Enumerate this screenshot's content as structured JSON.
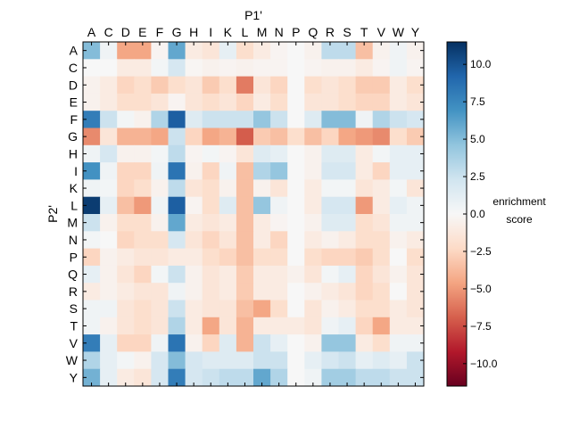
{
  "chart_data": {
    "type": "heatmap",
    "title": "",
    "xlabel": "P1'",
    "ylabel": "P2'",
    "colorbar_label_line1": "enrichment",
    "colorbar_label_line2": "score",
    "x_categories": [
      "A",
      "C",
      "D",
      "E",
      "F",
      "G",
      "H",
      "I",
      "K",
      "L",
      "M",
      "N",
      "P",
      "Q",
      "R",
      "S",
      "T",
      "V",
      "W",
      "Y"
    ],
    "y_categories": [
      "A",
      "C",
      "D",
      "E",
      "F",
      "G",
      "H",
      "I",
      "K",
      "L",
      "M",
      "N",
      "P",
      "Q",
      "R",
      "S",
      "T",
      "V",
      "W",
      "Y"
    ],
    "x_axis_position": "top",
    "colorbar_range": [
      -11.5,
      11.5
    ],
    "colorbar_ticks": [
      -10.0,
      -7.5,
      -5.0,
      -2.5,
      0.0,
      2.5,
      5.0,
      7.5,
      10.0
    ],
    "colorbar_tick_labels": [
      "−10.0",
      "−7.5",
      "−5.0",
      "−2.5",
      "0.0",
      "2.5",
      "5.0",
      "7.5",
      "10.0"
    ],
    "colormap": "RdBu",
    "grid": false,
    "values": [
      [
        5.0,
        0.5,
        -4.5,
        -4.5,
        -0.3,
        6.0,
        -1.0,
        -1.5,
        1.0,
        -2.0,
        -1.0,
        -0.3,
        0.0,
        -0.5,
        3.0,
        3.0,
        -3.5,
        -0.5,
        0.5,
        -0.5
      ],
      [
        0.0,
        0.0,
        -1.0,
        -1.0,
        0.3,
        2.0,
        -0.2,
        -0.5,
        -0.3,
        -0.5,
        -0.3,
        -0.3,
        0.0,
        -0.3,
        -0.5,
        -0.5,
        -1.0,
        -0.3,
        0.5,
        -0.3
      ],
      [
        -0.5,
        -1.0,
        -2.5,
        -2.0,
        -3.0,
        -2.0,
        -1.5,
        -3.0,
        -2.0,
        -6.0,
        -1.5,
        -2.5,
        0.0,
        -2.0,
        -1.5,
        -2.0,
        -3.0,
        -3.0,
        -1.0,
        -2.0
      ],
      [
        -0.5,
        -1.0,
        -2.0,
        -2.0,
        -1.5,
        -0.3,
        -1.5,
        -2.0,
        -1.5,
        -2.5,
        -1.0,
        -2.0,
        0.0,
        -1.5,
        -1.5,
        -2.0,
        -2.5,
        -2.5,
        -1.0,
        -1.5
      ],
      [
        8.0,
        2.5,
        0.3,
        -0.5,
        3.5,
        9.5,
        1.5,
        2.5,
        2.5,
        2.5,
        4.5,
        2.5,
        0.0,
        1.5,
        5.0,
        5.0,
        0.5,
        3.5,
        2.5,
        2.0
      ],
      [
        -5.5,
        -1.5,
        -4.0,
        -4.0,
        -4.5,
        2.5,
        -2.5,
        -4.5,
        -4.0,
        -7.0,
        -3.0,
        -3.5,
        -2.0,
        -3.5,
        -2.5,
        -4.5,
        -5.0,
        -5.5,
        -2.0,
        -3.0
      ],
      [
        0.5,
        2.0,
        -0.5,
        -0.5,
        0.3,
        3.0,
        -0.3,
        0.3,
        -0.3,
        -1.5,
        1.5,
        1.0,
        0.0,
        -0.5,
        1.5,
        1.5,
        -1.0,
        0.3,
        1.0,
        1.0
      ],
      [
        7.0,
        0.5,
        -2.5,
        -2.5,
        0.5,
        8.5,
        -0.5,
        -2.5,
        0.5,
        -3.5,
        3.5,
        4.5,
        0.0,
        -0.5,
        2.0,
        2.0,
        -1.0,
        -2.5,
        1.0,
        1.0
      ],
      [
        0.5,
        0.3,
        -2.5,
        -2.0,
        -0.5,
        3.0,
        -1.5,
        -2.0,
        -0.5,
        -3.5,
        -0.5,
        -1.5,
        0.0,
        -1.0,
        0.3,
        0.3,
        -1.5,
        -1.0,
        0.3,
        -1.5
      ],
      [
        11.0,
        1.0,
        -3.5,
        -5.0,
        0.5,
        9.5,
        -0.3,
        -2.0,
        1.5,
        -3.5,
        4.5,
        0.5,
        0.0,
        -1.0,
        2.0,
        2.0,
        -5.0,
        -1.0,
        1.0,
        0.5
      ],
      [
        2.5,
        -0.5,
        -2.0,
        -2.0,
        -0.5,
        6.0,
        -1.0,
        -1.5,
        -1.0,
        -3.5,
        -1.0,
        -0.3,
        0.0,
        -0.5,
        1.5,
        1.5,
        -2.0,
        -1.5,
        0.5,
        0.5
      ],
      [
        0.3,
        0.0,
        -2.5,
        -2.0,
        -2.0,
        2.0,
        -1.5,
        -2.5,
        -1.5,
        -3.5,
        -1.0,
        -2.5,
        0.0,
        -1.0,
        -0.5,
        -1.0,
        -2.0,
        -2.0,
        -0.5,
        -1.0
      ],
      [
        -2.5,
        -0.5,
        -1.0,
        -1.5,
        -1.5,
        -1.0,
        -1.0,
        -2.0,
        -2.5,
        -3.5,
        -2.0,
        -2.0,
        0.0,
        -2.0,
        -2.5,
        -2.5,
        -3.0,
        -2.0,
        0.0,
        -2.0
      ],
      [
        1.0,
        -0.5,
        -1.5,
        -2.5,
        0.3,
        2.5,
        -0.5,
        -1.5,
        -1.0,
        -3.0,
        -1.0,
        -1.0,
        -0.5,
        -1.5,
        0.3,
        1.0,
        -2.5,
        -1.5,
        -0.5,
        -1.5
      ],
      [
        -1.0,
        -0.5,
        -1.0,
        -1.5,
        -1.5,
        0.5,
        -0.5,
        -1.5,
        -1.0,
        -3.0,
        -1.0,
        -1.0,
        0.0,
        -0.5,
        -1.0,
        -1.5,
        -2.5,
        -2.0,
        0.0,
        -1.5
      ],
      [
        0.5,
        0.5,
        -1.5,
        -2.0,
        -1.5,
        2.5,
        -1.0,
        -1.5,
        -1.5,
        -3.5,
        -4.5,
        -2.0,
        0.0,
        -1.5,
        -0.5,
        -1.0,
        -2.0,
        -2.0,
        -1.0,
        -1.5
      ],
      [
        0.5,
        -0.5,
        -1.5,
        -2.0,
        -1.5,
        3.5,
        -1.0,
        -4.5,
        -1.5,
        -4.0,
        -1.0,
        -1.0,
        -1.0,
        -1.5,
        0.5,
        1.0,
        -2.5,
        -4.5,
        -1.0,
        -1.0
      ],
      [
        8.0,
        1.0,
        -2.5,
        -2.5,
        0.5,
        8.5,
        -0.5,
        -2.5,
        1.5,
        -4.0,
        2.5,
        1.0,
        0.0,
        -0.5,
        4.5,
        4.5,
        -1.0,
        -2.0,
        0.5,
        0.5
      ],
      [
        3.5,
        1.0,
        0.3,
        -0.5,
        2.0,
        5.0,
        2.0,
        1.5,
        1.5,
        1.5,
        2.5,
        2.5,
        0.0,
        1.0,
        2.0,
        2.5,
        1.0,
        1.5,
        1.0,
        2.5
      ],
      [
        5.5,
        1.0,
        -1.0,
        -1.5,
        2.0,
        8.0,
        2.0,
        2.5,
        3.0,
        3.0,
        6.0,
        3.5,
        0.0,
        0.5,
        4.0,
        4.0,
        3.0,
        3.0,
        2.5,
        2.5
      ]
    ]
  }
}
